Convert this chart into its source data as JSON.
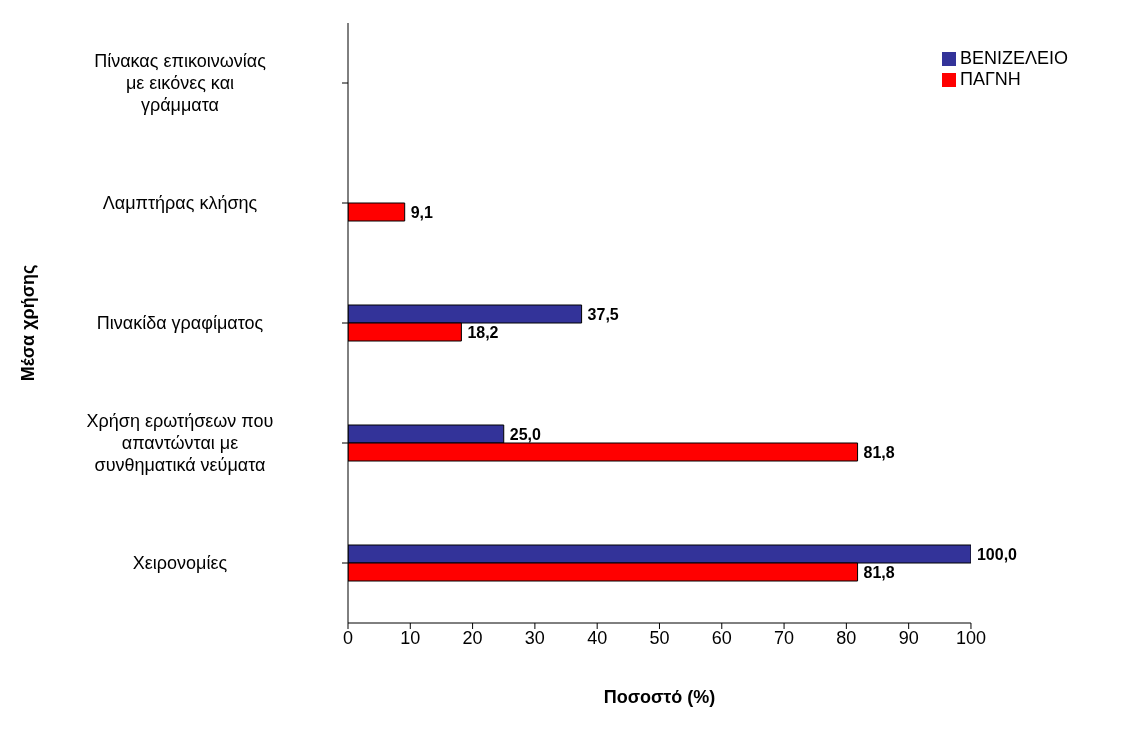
{
  "chart_data": {
    "type": "bar",
    "orientation": "horizontal",
    "xlabel": "Ποσοστό (%)",
    "ylabel": "Μέσα χρήσης",
    "categories": [
      "Πίνακας επικοινωνίας με εικόνες και γράμματα",
      "Λαμπτήρας κλήσης",
      "Πινακίδα γραφίματος",
      "Χρήση ερωτήσεων που απαντώνται με συνθηματικά νεύματα",
      "Χειρονομίες"
    ],
    "series": [
      {
        "name": "ΒΕΝΙΖΕΛΕΙΟ",
        "color": "#333399",
        "values": [
          null,
          null,
          37.5,
          25.0,
          100.0
        ],
        "value_labels": [
          null,
          null,
          "37,5",
          "25,0",
          "100,0"
        ]
      },
      {
        "name": "ΠΑΓΝΗ",
        "color": "#ff0000",
        "values": [
          null,
          9.1,
          18.2,
          81.8,
          81.8
        ],
        "value_labels": [
          null,
          "9,1",
          "18,2",
          "81,8",
          "81,8"
        ]
      }
    ],
    "xlim": [
      0,
      100
    ],
    "xticks": [
      0,
      10,
      20,
      30,
      40,
      50,
      60,
      70,
      80,
      90,
      100
    ],
    "grid": false,
    "legend": "top right"
  }
}
